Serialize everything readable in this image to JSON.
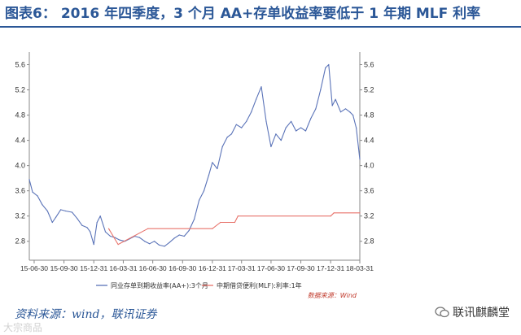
{
  "header": {
    "prefix": "图表6：",
    "title": "2016 年四季度，3 个月 AA+存单收益率要低于 1 年期 MLF 利率"
  },
  "footer": {
    "source": "资料来源：wind，联讯证券",
    "brand": "联讯麒麟堂",
    "watermark": "大宗商品"
  },
  "chart_data": {
    "type": "line",
    "ylim": [
      2.5,
      5.8
    ],
    "yticks": [
      "2.8",
      "3.2",
      "3.6",
      "4.0",
      "4.4",
      "4.8",
      "5.2",
      "5.6"
    ],
    "xticks": [
      "15-06-30",
      "15-09-30",
      "15-12-31",
      "16-03-31",
      "16-06-30",
      "16-09-30",
      "16-12-31",
      "17-03-31",
      "17-06-30",
      "17-09-30",
      "17-12-31",
      "18-03-31"
    ],
    "grid": false,
    "legend_position": "bottom",
    "source_note": "数据来源：Wind",
    "series": [
      {
        "name": "同业存单到期收益率(AA+):3个月",
        "color": "#5a73b8",
        "points": [
          [
            "2015-06-15",
            3.78
          ],
          [
            "2015-06-25",
            3.58
          ],
          [
            "2015-07-10",
            3.52
          ],
          [
            "2015-07-25",
            3.38
          ],
          [
            "2015-08-10",
            3.28
          ],
          [
            "2015-08-25",
            3.1
          ],
          [
            "2015-09-05",
            3.18
          ],
          [
            "2015-09-20",
            3.3
          ],
          [
            "2015-10-05",
            3.28
          ],
          [
            "2015-10-25",
            3.26
          ],
          [
            "2015-11-10",
            3.16
          ],
          [
            "2015-11-25",
            3.05
          ],
          [
            "2015-12-10",
            3.02
          ],
          [
            "2015-12-20",
            2.95
          ],
          [
            "2015-12-31",
            2.75
          ],
          [
            "2016-01-10",
            3.1
          ],
          [
            "2016-01-20",
            3.2
          ],
          [
            "2016-02-05",
            2.95
          ],
          [
            "2016-02-20",
            2.88
          ],
          [
            "2016-03-05",
            2.86
          ],
          [
            "2016-03-20",
            2.82
          ],
          [
            "2016-04-05",
            2.8
          ],
          [
            "2016-04-20",
            2.84
          ],
          [
            "2016-05-05",
            2.88
          ],
          [
            "2016-05-20",
            2.86
          ],
          [
            "2016-06-05",
            2.8
          ],
          [
            "2016-06-20",
            2.76
          ],
          [
            "2016-07-05",
            2.8
          ],
          [
            "2016-07-20",
            2.74
          ],
          [
            "2016-08-05",
            2.72
          ],
          [
            "2016-08-20",
            2.78
          ],
          [
            "2016-09-05",
            2.85
          ],
          [
            "2016-09-20",
            2.9
          ],
          [
            "2016-10-05",
            2.88
          ],
          [
            "2016-10-20",
            2.97
          ],
          [
            "2016-11-05",
            3.15
          ],
          [
            "2016-11-20",
            3.45
          ],
          [
            "2016-12-05",
            3.6
          ],
          [
            "2016-12-20",
            3.85
          ],
          [
            "2016-12-31",
            4.05
          ],
          [
            "2017-01-15",
            3.95
          ],
          [
            "2017-01-31",
            4.3
          ],
          [
            "2017-02-15",
            4.45
          ],
          [
            "2017-02-28",
            4.5
          ],
          [
            "2017-03-15",
            4.65
          ],
          [
            "2017-03-31",
            4.6
          ],
          [
            "2017-04-15",
            4.7
          ],
          [
            "2017-04-30",
            4.85
          ],
          [
            "2017-05-15",
            5.05
          ],
          [
            "2017-05-31",
            5.25
          ],
          [
            "2017-06-15",
            4.7
          ],
          [
            "2017-06-30",
            4.3
          ],
          [
            "2017-07-15",
            4.5
          ],
          [
            "2017-07-31",
            4.4
          ],
          [
            "2017-08-15",
            4.6
          ],
          [
            "2017-08-31",
            4.7
          ],
          [
            "2017-09-15",
            4.55
          ],
          [
            "2017-09-30",
            4.6
          ],
          [
            "2017-10-15",
            4.55
          ],
          [
            "2017-10-31",
            4.75
          ],
          [
            "2017-11-15",
            4.9
          ],
          [
            "2017-11-30",
            5.2
          ],
          [
            "2017-12-15",
            5.55
          ],
          [
            "2017-12-25",
            5.6
          ],
          [
            "2018-01-05",
            4.95
          ],
          [
            "2018-01-15",
            5.05
          ],
          [
            "2018-01-31",
            4.85
          ],
          [
            "2018-02-15",
            4.9
          ],
          [
            "2018-02-28",
            4.85
          ],
          [
            "2018-03-10",
            4.8
          ],
          [
            "2018-03-20",
            4.6
          ],
          [
            "2018-03-31",
            4.1
          ]
        ]
      },
      {
        "name": "中期借贷便利(MLF):利率:1年",
        "color": "#e8736b",
        "points": [
          [
            "2016-02-15",
            3.0
          ],
          [
            "2016-03-15",
            2.75
          ],
          [
            "2016-06-15",
            3.0
          ],
          [
            "2016-12-31",
            3.0
          ],
          [
            "2017-01-25",
            3.1
          ],
          [
            "2017-03-10",
            3.1
          ],
          [
            "2017-03-20",
            3.2
          ],
          [
            "2017-12-31",
            3.2
          ],
          [
            "2018-01-10",
            3.25
          ],
          [
            "2018-03-31",
            3.25
          ]
        ]
      }
    ]
  }
}
